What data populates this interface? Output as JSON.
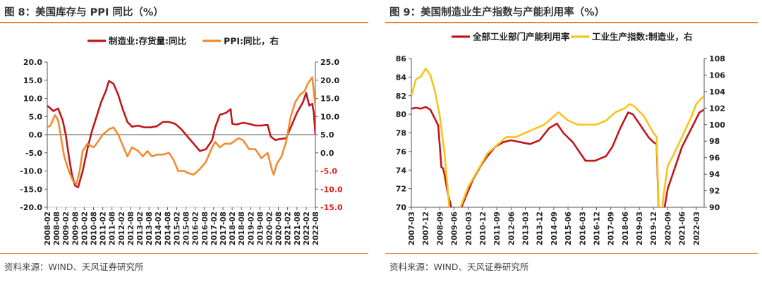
{
  "left": {
    "title": "图 8：美国库存与 PPI 同比（%）",
    "source": "资料来源：WIND、天风证券研究所"
  },
  "right": {
    "title": "图 9：美国制造业生产指数与产能利用率（%）",
    "source": "资料来源：WIND、天风证券研究所"
  },
  "chart_data": [
    {
      "type": "line",
      "x_start": "2008-02",
      "x_end": "2022-08",
      "xticks": [
        "2008-02",
        "2008-08",
        "2009-02",
        "2009-08",
        "2010-02",
        "2010-08",
        "2011-02",
        "2011-08",
        "2012-02",
        "2012-08",
        "2013-02",
        "2013-08",
        "2014-02",
        "2014-08",
        "2015-02",
        "2015-08",
        "2016-02",
        "2016-08",
        "2017-02",
        "2017-08",
        "2018-02",
        "2018-08",
        "2019-02",
        "2019-08",
        "2020-02",
        "2020-08",
        "2021-02",
        "2021-08",
        "2022-02",
        "2022-08"
      ],
      "ylim_left": [
        -20,
        20
      ],
      "yticks_left": [
        "20.0",
        "15.0",
        "10.0",
        "5.0",
        "0.0",
        "-5.0",
        "-10.0",
        "-15.0",
        "-20.0"
      ],
      "ylim_right": [
        -15,
        25
      ],
      "yticks_right": [
        "25.0",
        "20.0",
        "15.0",
        "10.0",
        "5.0",
        "0.0",
        "-5.0",
        "-10.0",
        "-15.0"
      ],
      "series": [
        {
          "name": "制造业:存货量:同比",
          "axis": "left",
          "color": "#c0161c",
          "points": [
            [
              "2008-02",
              8
            ],
            [
              "2008-06",
              6.5
            ],
            [
              "2008-09",
              7.2
            ],
            [
              "2008-12",
              4
            ],
            [
              "2009-02",
              0
            ],
            [
              "2009-04",
              -6
            ],
            [
              "2009-06",
              -11
            ],
            [
              "2009-08",
              -14
            ],
            [
              "2009-10",
              -14.5
            ],
            [
              "2010-01",
              -10
            ],
            [
              "2010-04",
              -4
            ],
            [
              "2010-07",
              1
            ],
            [
              "2010-10",
              5
            ],
            [
              "2011-01",
              9
            ],
            [
              "2011-04",
              12
            ],
            [
              "2011-06",
              14.8
            ],
            [
              "2011-09",
              14
            ],
            [
              "2011-12",
              11
            ],
            [
              "2012-03",
              7
            ],
            [
              "2012-06",
              3.5
            ],
            [
              "2012-09",
              2.2
            ],
            [
              "2013-01",
              2.5
            ],
            [
              "2013-05",
              2
            ],
            [
              "2013-09",
              2
            ],
            [
              "2014-01",
              2.3
            ],
            [
              "2014-05",
              3.5
            ],
            [
              "2014-09",
              3.5
            ],
            [
              "2015-01",
              3
            ],
            [
              "2015-05",
              1.5
            ],
            [
              "2015-09",
              -0.5
            ],
            [
              "2016-01",
              -2.5
            ],
            [
              "2016-05",
              -4.5
            ],
            [
              "2016-09",
              -4
            ],
            [
              "2017-01",
              -1.5
            ],
            [
              "2017-03",
              2
            ],
            [
              "2017-06",
              5.5
            ],
            [
              "2017-10",
              6
            ],
            [
              "2018-01",
              7
            ],
            [
              "2018-02",
              3
            ],
            [
              "2018-05",
              2.8
            ],
            [
              "2018-09",
              3.3
            ],
            [
              "2019-01",
              3
            ],
            [
              "2019-05",
              2.5
            ],
            [
              "2019-09",
              2.5
            ],
            [
              "2020-01",
              2.7
            ],
            [
              "2020-03",
              -0.5
            ],
            [
              "2020-06",
              -1.5
            ],
            [
              "2020-09",
              -1.2
            ],
            [
              "2021-01",
              -1
            ],
            [
              "2021-04",
              2
            ],
            [
              "2021-08",
              6
            ],
            [
              "2021-12",
              9
            ],
            [
              "2022-02",
              11.5
            ],
            [
              "2022-04",
              8
            ],
            [
              "2022-06",
              8.5
            ],
            [
              "2022-07",
              6
            ],
            [
              "2022-08",
              0
            ]
          ]
        },
        {
          "name": "PPI:同比，右",
          "axis": "right",
          "color": "#f28b2f",
          "points": [
            [
              "2008-02",
              7
            ],
            [
              "2008-04",
              7.5
            ],
            [
              "2008-07",
              10.4
            ],
            [
              "2008-09",
              9
            ],
            [
              "2008-11",
              4
            ],
            [
              "2009-01",
              -1
            ],
            [
              "2009-04",
              -5
            ],
            [
              "2009-07",
              -8
            ],
            [
              "2009-09",
              -8.5
            ],
            [
              "2009-11",
              -5
            ],
            [
              "2010-01",
              0.5
            ],
            [
              "2010-04",
              2.5
            ],
            [
              "2010-08",
              1.5
            ],
            [
              "2010-10",
              2.5
            ],
            [
              "2011-02",
              5
            ],
            [
              "2011-06",
              6.5
            ],
            [
              "2011-09",
              7
            ],
            [
              "2011-12",
              5
            ],
            [
              "2012-03",
              2
            ],
            [
              "2012-06",
              -1
            ],
            [
              "2012-09",
              1.5
            ],
            [
              "2013-01",
              0.5
            ],
            [
              "2013-04",
              -1
            ],
            [
              "2013-07",
              0.5
            ],
            [
              "2013-10",
              -1
            ],
            [
              "2014-01",
              -0.5
            ],
            [
              "2014-05",
              -0.5
            ],
            [
              "2014-09",
              0
            ],
            [
              "2014-12",
              -2
            ],
            [
              "2015-03",
              -5
            ],
            [
              "2015-07",
              -5
            ],
            [
              "2015-09",
              -5.5
            ],
            [
              "2016-01",
              -6
            ],
            [
              "2016-05",
              -4.5
            ],
            [
              "2016-09",
              -2.5
            ],
            [
              "2017-01",
              1.5
            ],
            [
              "2017-03",
              3
            ],
            [
              "2017-06",
              1.5
            ],
            [
              "2017-09",
              2.5
            ],
            [
              "2018-01",
              2.5
            ],
            [
              "2018-06",
              4
            ],
            [
              "2018-09",
              3.5
            ],
            [
              "2019-01",
              1
            ],
            [
              "2019-05",
              1
            ],
            [
              "2019-09",
              -1.5
            ],
            [
              "2020-01",
              0
            ],
            [
              "2020-04",
              -5
            ],
            [
              "2020-05",
              -6
            ],
            [
              "2020-07",
              -3
            ],
            [
              "2020-10",
              -1
            ],
            [
              "2021-01",
              3
            ],
            [
              "2021-04",
              10
            ],
            [
              "2021-07",
              14
            ],
            [
              "2021-10",
              16
            ],
            [
              "2022-01",
              17
            ],
            [
              "2022-03",
              19
            ],
            [
              "2022-06",
              20.8
            ],
            [
              "2022-08",
              13
            ]
          ]
        }
      ]
    },
    {
      "type": "line",
      "x_start": "2007-03",
      "x_end": "2022-08",
      "xticks": [
        "2007-03",
        "2007-12",
        "2008-09",
        "2009-06",
        "2010-03",
        "2010-12",
        "2011-09",
        "2012-06",
        "2013-03",
        "2013-12",
        "2014-09",
        "2015-06",
        "2016-03",
        "2016-12",
        "2017-09",
        "2018-06",
        "2019-03",
        "2019-12",
        "2020-09",
        "2021-06",
        "2022-03"
      ],
      "ylim_left": [
        70,
        86
      ],
      "yticks_left": [
        "86",
        "84",
        "82",
        "80",
        "78",
        "76",
        "74",
        "72",
        "70"
      ],
      "ylim_right": [
        90,
        108
      ],
      "yticks_right": [
        "108",
        "106",
        "104",
        "102",
        "100",
        "98",
        "96",
        "94",
        "92",
        "90"
      ],
      "series": [
        {
          "name": "全部工业部门产能利用率",
          "axis": "left",
          "color": "#c0161c",
          "points": [
            [
              "2007-03",
              80.6
            ],
            [
              "2007-06",
              80.7
            ],
            [
              "2007-09",
              80.6
            ],
            [
              "2007-12",
              80.8
            ],
            [
              "2008-03",
              80.5
            ],
            [
              "2008-06",
              79.5
            ],
            [
              "2008-08",
              78.8
            ],
            [
              "2008-10",
              74.3
            ],
            [
              "2008-11",
              74.2
            ],
            [
              "2008-12",
              73.5
            ],
            [
              "2009-02",
              71.5
            ],
            [
              "2009-05",
              69.5
            ],
            [
              "2009-09",
              69.3
            ],
            [
              "2010-01",
              71
            ],
            [
              "2010-06",
              73
            ],
            [
              "2010-11",
              74.5
            ],
            [
              "2011-03",
              75.5
            ],
            [
              "2011-08",
              76.5
            ],
            [
              "2012-01",
              77
            ],
            [
              "2012-06",
              77.2
            ],
            [
              "2012-12",
              77
            ],
            [
              "2013-06",
              76.8
            ],
            [
              "2013-12",
              77.2
            ],
            [
              "2014-06",
              78.5
            ],
            [
              "2014-11",
              79
            ],
            [
              "2015-03",
              78
            ],
            [
              "2015-09",
              77
            ],
            [
              "2016-01",
              76
            ],
            [
              "2016-05",
              75
            ],
            [
              "2016-11",
              75
            ],
            [
              "2017-06",
              75.5
            ],
            [
              "2017-10",
              76.5
            ],
            [
              "2018-03",
              78.5
            ],
            [
              "2018-08",
              80.2
            ],
            [
              "2018-11",
              80
            ],
            [
              "2019-05",
              78.5
            ],
            [
              "2019-09",
              77.5
            ],
            [
              "2019-12",
              77
            ],
            [
              "2020-02",
              76.8
            ],
            [
              "2020-04",
              65
            ],
            [
              "2020-06",
              69
            ],
            [
              "2020-09",
              72
            ],
            [
              "2021-01",
              74
            ],
            [
              "2021-06",
              76.5
            ],
            [
              "2021-12",
              78.5
            ],
            [
              "2022-05",
              80.2
            ],
            [
              "2022-08",
              80.5
            ]
          ]
        },
        {
          "name": "工业生产指数:制造业，右",
          "axis": "right",
          "color": "#f7c41a",
          "points": [
            [
              "2007-03",
              103.5
            ],
            [
              "2007-06",
              105.5
            ],
            [
              "2007-09",
              105.8
            ],
            [
              "2007-12",
              106.8
            ],
            [
              "2008-03",
              106
            ],
            [
              "2008-06",
              104
            ],
            [
              "2008-09",
              101
            ],
            [
              "2008-12",
              96.5
            ],
            [
              "2009-03",
              90
            ],
            [
              "2009-06",
              89.2
            ],
            [
              "2009-09",
              89.5
            ],
            [
              "2010-03",
              92.5
            ],
            [
              "2010-09",
              94.5
            ],
            [
              "2011-03",
              96.5
            ],
            [
              "2011-09",
              97.5
            ],
            [
              "2012-03",
              98.5
            ],
            [
              "2012-09",
              98.5
            ],
            [
              "2013-03",
              99
            ],
            [
              "2013-09",
              99.5
            ],
            [
              "2014-03",
              100
            ],
            [
              "2014-09",
              101
            ],
            [
              "2014-12",
              101.5
            ],
            [
              "2015-06",
              100.5
            ],
            [
              "2015-12",
              100
            ],
            [
              "2016-06",
              100
            ],
            [
              "2016-12",
              100
            ],
            [
              "2017-06",
              100.5
            ],
            [
              "2017-12",
              101.5
            ],
            [
              "2018-06",
              102
            ],
            [
              "2018-09",
              102.5
            ],
            [
              "2018-12",
              102.2
            ],
            [
              "2019-06",
              101
            ],
            [
              "2019-12",
              99
            ],
            [
              "2020-02",
              98.5
            ],
            [
              "2020-04",
              85
            ],
            [
              "2020-06",
              91
            ],
            [
              "2020-09",
              95
            ],
            [
              "2021-01",
              96.5
            ],
            [
              "2021-06",
              98.5
            ],
            [
              "2021-12",
              101
            ],
            [
              "2022-03",
              102.5
            ],
            [
              "2022-08",
              103.5
            ]
          ]
        }
      ]
    }
  ]
}
